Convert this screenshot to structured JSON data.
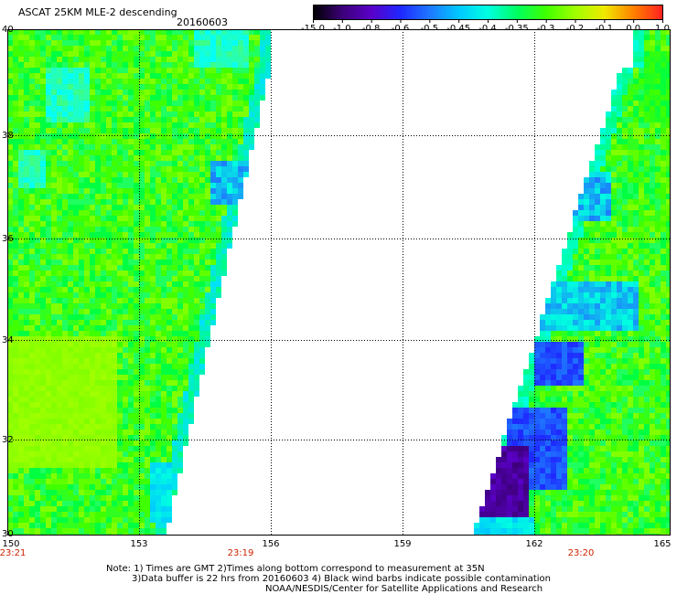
{
  "header": {
    "title": "ASCAT 25KM MLE-2 descending",
    "date": "20160603"
  },
  "colorbar": {
    "labels": [
      "-15.0",
      "-1.0",
      "-0.8",
      "-0.6",
      "-0.5",
      "-0.45",
      "-0.4",
      "-0.35",
      "-0.3",
      "-0.2",
      "-0.1",
      "0.0",
      "1.0"
    ],
    "colors": [
      "#000000",
      "#3c0078",
      "#5a00c8",
      "#1e28ff",
      "#1e78ff",
      "#00c8ff",
      "#00ffe0",
      "#00ff60",
      "#40ff00",
      "#a0ff00",
      "#f0e800",
      "#ff8000",
      "#ff2020"
    ]
  },
  "axes": {
    "lat_labels": [
      "40",
      "38",
      "36",
      "34",
      "32",
      "30"
    ],
    "lon_labels": [
      "150",
      "153",
      "156",
      "159",
      "162",
      "165"
    ],
    "time_labels": [
      "23:21",
      "23:19",
      "23:20"
    ]
  },
  "footer": {
    "line1": "Note: 1) Times are GMT 2)Times along bottom correspond to measurement at 35N",
    "line2": "3)Data buffer is 22 hrs from 20160603 4) Black wind barbs indicate possible contamination",
    "line3": "NOAA/NESDIS/Center for Satellite Applications and Research"
  },
  "colors": {
    "background": "#ffffff",
    "time_label": "#cc2200",
    "swath_base": "#40ff00"
  }
}
